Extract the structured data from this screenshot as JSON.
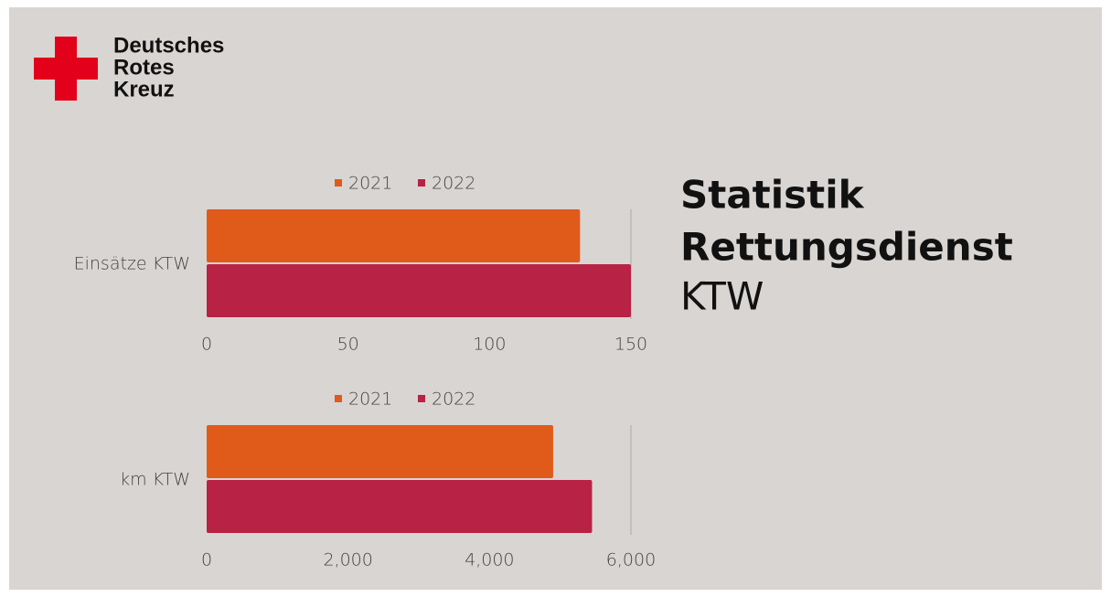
{
  "logo": {
    "lines": [
      "Deutsches",
      "Rotes",
      "Kreuz"
    ]
  },
  "heading": {
    "line1": "Statistik",
    "line2": "Rettungsdienst",
    "line3": "KTW"
  },
  "chart_data": [
    {
      "type": "barh",
      "categories": [
        "Einsätze KTW"
      ],
      "series": [
        {
          "name": "2021",
          "color": "#e05a1a",
          "values": [
            132
          ]
        },
        {
          "name": "2022",
          "color": "#b82244",
          "values": [
            150
          ]
        }
      ],
      "xlim": [
        0,
        150
      ],
      "xticks": [
        0,
        50,
        100,
        150
      ],
      "legend": "top"
    },
    {
      "type": "barh",
      "categories": [
        "km KTW"
      ],
      "series": [
        {
          "name": "2021",
          "color": "#e05a1a",
          "values": [
            4900
          ]
        },
        {
          "name": "2022",
          "color": "#b82244",
          "values": [
            5450
          ]
        }
      ],
      "xlim": [
        0,
        6000
      ],
      "xticks": [
        0,
        {
          "value": 2000,
          "label": "2,000"
        },
        {
          "value": 4000,
          "label": "4,000"
        },
        {
          "value": 6000,
          "label": "6,000"
        }
      ],
      "legend": "top"
    }
  ]
}
